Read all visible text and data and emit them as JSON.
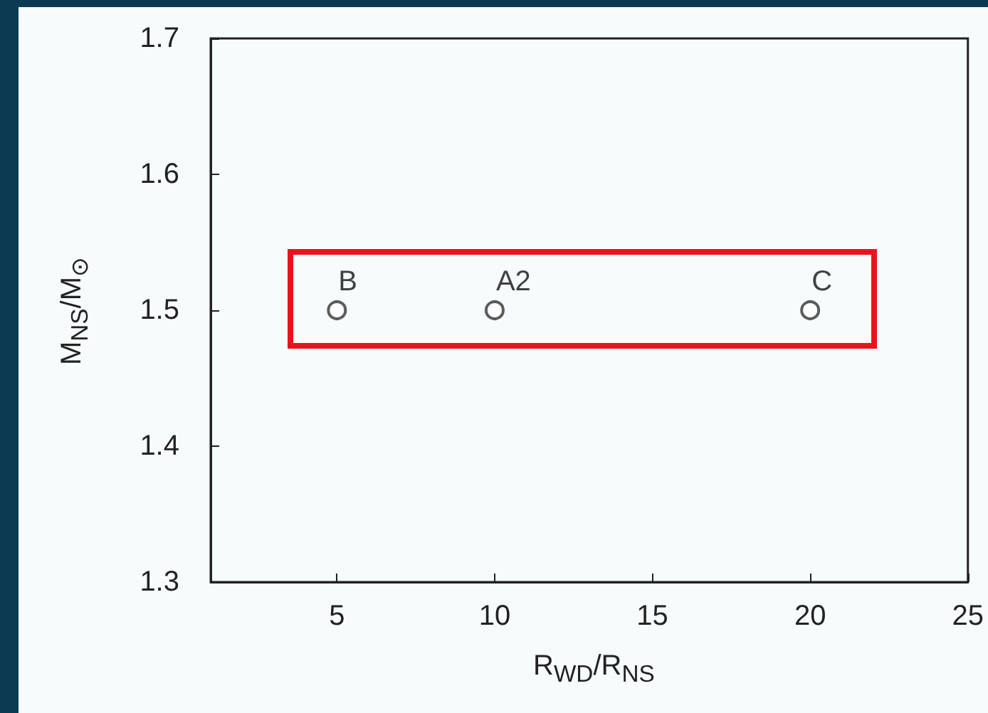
{
  "chart_data": {
    "type": "scatter",
    "xlabel": "R$_{WD}$/R$_{NS}$",
    "ylabel": "M$_{NS}$/M$_{⊙}$",
    "x": [
      5,
      10,
      20
    ],
    "values": [
      1.5,
      1.5,
      1.5
    ],
    "color": "#333333",
    "marker": "circle",
    "xlim": [
      1,
      25
    ],
    "xticks": [
      5,
      10,
      15,
      20,
      25
    ],
    "ylim": [
      1.3,
      1.7
    ],
    "yticks": [
      1.3,
      1.4,
      1.5,
      1.6,
      1.7
    ],
    "grid": false,
    "annotations": [
      {
        "text": "B",
        "x": 5,
        "y": 1.5
      },
      {
        "text": "A2",
        "x": 10,
        "y": 1.5
      },
      {
        "text": "C",
        "x": 20,
        "y": 1.5
      }
    ]
  }
}
